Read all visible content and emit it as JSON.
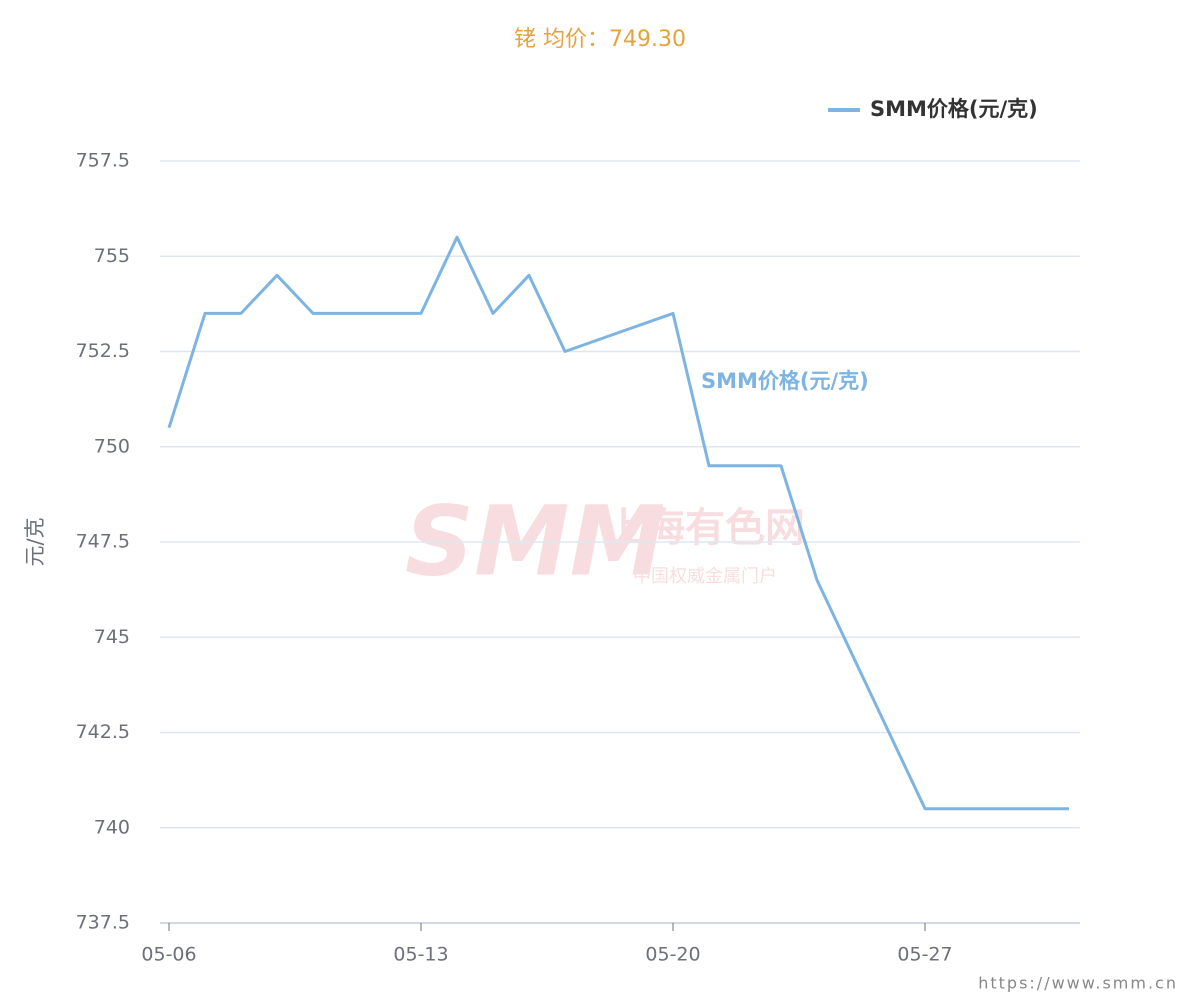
{
  "chart_data": {
    "type": "line",
    "title": "铑 均价：749.30",
    "y_label": "元/克",
    "watermark": {
      "logo": "SMM",
      "name": "上海有色网",
      "slogan": "中国权威金属门户"
    },
    "source": "https://www.smm.cn",
    "x": [
      "05-06",
      "05-07",
      "05-08",
      "05-09",
      "05-10",
      "05-13",
      "05-14",
      "05-15",
      "05-16",
      "05-17",
      "05-20",
      "05-21",
      "05-22",
      "05-23",
      "05-24",
      "05-27",
      "05-28",
      "05-29",
      "05-30",
      "05-31"
    ],
    "series": [
      {
        "name": "SMM价格(元/克)",
        "color": "#7eb4e2",
        "values": [
          750.5,
          753.5,
          753.5,
          754.5,
          753.5,
          753.5,
          755.5,
          753.5,
          754.5,
          752.5,
          753.5,
          749.5,
          749.5,
          749.5,
          746.5,
          740.5,
          740.5,
          740.5,
          740.5,
          740.5
        ]
      }
    ],
    "xlim": [
      "05-06",
      "05-31"
    ],
    "xticks": [
      "05-06",
      "05-13",
      "05-20",
      "05-27"
    ],
    "ylim": [
      737.5,
      757.5
    ],
    "yticks": [
      737.5,
      740,
      742.5,
      745,
      747.5,
      750,
      752.5,
      755,
      757.5
    ],
    "grid": true,
    "legend": "top-right"
  }
}
